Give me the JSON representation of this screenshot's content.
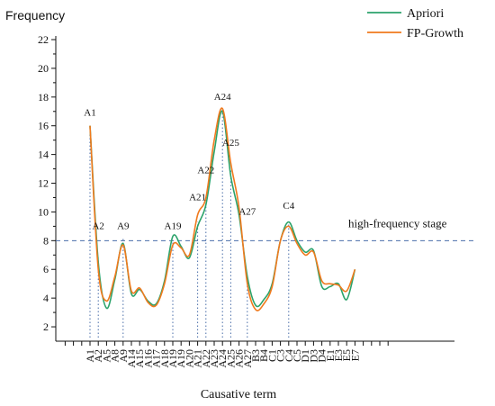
{
  "chart_data": {
    "type": "line",
    "ylabel": "Frequency",
    "xlabel": "Causative term",
    "ylim": [
      1,
      22
    ],
    "yticks": [
      2,
      4,
      6,
      8,
      10,
      12,
      14,
      16,
      18,
      20,
      22
    ],
    "categories": [
      "A1",
      "A2",
      "A5",
      "A8",
      "A9",
      "A14",
      "A15",
      "A16",
      "A17",
      "A18",
      "A19",
      "A19",
      "A20",
      "A21",
      "A22",
      "A23",
      "A24",
      "A25",
      "A26",
      "A27",
      "B3",
      "B4",
      "C1",
      "C3",
      "C4",
      "C5",
      "D1",
      "D3",
      "D4",
      "E1",
      "E3",
      "E5",
      "E7"
    ],
    "series": [
      {
        "name": "Apriori",
        "color": "#2ca36b",
        "values": [
          16,
          6.5,
          3.3,
          5.3,
          7.8,
          4.3,
          4.6,
          3.8,
          3.6,
          5.2,
          8.3,
          7.6,
          6.8,
          9.0,
          10.5,
          14.2,
          17.0,
          12.5,
          9.8,
          5.5,
          3.5,
          3.9,
          5.0,
          8.0,
          9.3,
          8.0,
          7.2,
          7.3,
          4.8,
          4.8,
          5.0,
          3.9,
          6.0
        ]
      },
      {
        "name": "FP-Growth",
        "color": "#f07a1e",
        "values": [
          16,
          6.0,
          3.8,
          5.5,
          7.7,
          4.5,
          4.7,
          3.7,
          3.5,
          5.0,
          7.7,
          7.5,
          7.0,
          9.8,
          11.0,
          15.0,
          17.2,
          13.4,
          10.3,
          5.0,
          3.2,
          3.6,
          4.8,
          8.0,
          9.0,
          7.8,
          7.0,
          7.2,
          5.2,
          5.0,
          4.9,
          4.5,
          6.0
        ]
      }
    ],
    "threshold": {
      "value": 8,
      "label": "high-frequency stage"
    },
    "annotations": [
      {
        "label": "A1",
        "index": 0,
        "line_to": 16,
        "text_y": 16.7
      },
      {
        "label": "A2",
        "index": 1,
        "line_to": 6.8,
        "text_y": 8.8
      },
      {
        "label": "A9",
        "index": 4,
        "line_to": 8.2,
        "text_y": 8.8
      },
      {
        "label": "A19",
        "index": 10,
        "line_to": 8.0,
        "text_y": 8.8
      },
      {
        "label": "A21",
        "index": 13,
        "line_to": 9.3,
        "text_y": 10.8
      },
      {
        "label": "A22",
        "index": 14,
        "line_to": 10.8,
        "text_y": 12.7
      },
      {
        "label": "A24",
        "index": 16,
        "line_to": 17.2,
        "text_y": 17.8
      },
      {
        "label": "A25",
        "index": 17,
        "line_to": 13.0,
        "text_y": 14.6
      },
      {
        "label": "A27",
        "index": 19,
        "line_to": 5.5,
        "text_y": 9.8
      },
      {
        "label": "C4",
        "index": 24,
        "line_to": 9.2,
        "text_y": 10.2
      }
    ],
    "legend_position": "top-right",
    "grid": false
  }
}
